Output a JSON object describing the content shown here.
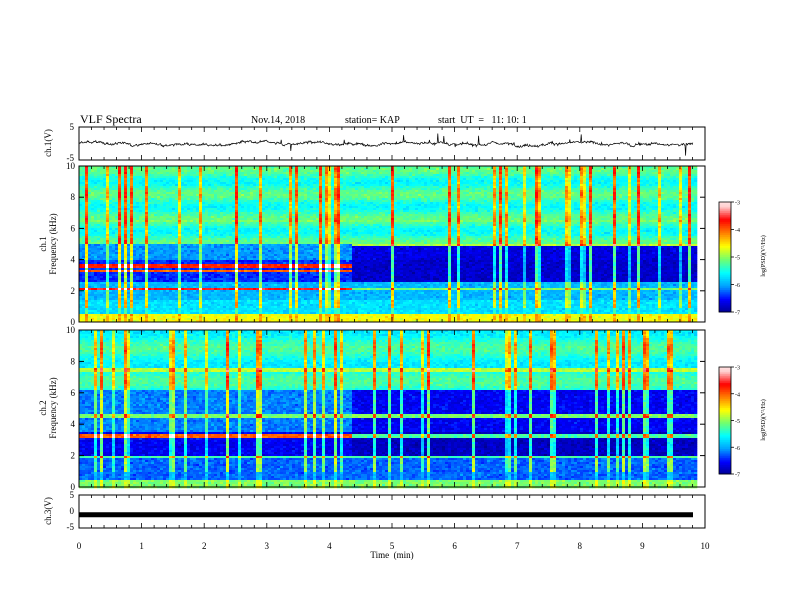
{
  "header": {
    "title": "VLF Spectra",
    "date": "Nov.14, 2018",
    "station": "station= KAP",
    "start": "start  UT  =   11: 10: 1"
  },
  "chart_data": [
    {
      "type": "line",
      "panel": "ch1-waveform",
      "ylabel": "ch.1(V)",
      "ylim": [
        -5,
        5
      ],
      "yticks": [
        5,
        -5
      ],
      "xlim": [
        0,
        10
      ],
      "series": [
        {
          "color": "#000000",
          "description_level": "noisy trace fluctuating roughly between -2.5 and 2.5 V"
        }
      ]
    },
    {
      "type": "heatmap",
      "panel": "ch1-spectrogram",
      "ylabel_line1": "ch.1",
      "ylabel_line2": "Frequency (kHz)",
      "ylim": [
        0,
        10
      ],
      "yticks": [
        0,
        2,
        4,
        6,
        8,
        10
      ],
      "xlim": [
        0,
        9.85
      ],
      "step_time_min": 4.35,
      "colorbar": {
        "label": "log(PSD)(V²/Hz)",
        "ticks": [
          -3,
          -4,
          -5,
          -6,
          -7
        ],
        "range": [
          -7,
          -3
        ]
      }
    },
    {
      "type": "heatmap",
      "panel": "ch2-spectrogram",
      "ylabel_line1": "ch.2",
      "ylabel_line2": "Frequency (kHz)",
      "ylim": [
        0,
        10
      ],
      "yticks": [
        0,
        2,
        4,
        6,
        8,
        10
      ],
      "xlim": [
        0,
        9.85
      ],
      "step_time_min": 4.35,
      "colorbar": {
        "label": "log(PSD)(V²/Hz)",
        "ticks": [
          -3,
          -4,
          -5,
          -6,
          -7
        ],
        "range": [
          -7,
          -3
        ]
      }
    },
    {
      "type": "line",
      "panel": "ch3-waveform",
      "ylabel": "ch.3(V)",
      "ylim": [
        -5,
        5
      ],
      "yticks": [
        5,
        0,
        -5
      ],
      "xlim": [
        0,
        10
      ],
      "series": [
        {
          "color": "#000000",
          "constant_value": -1
        }
      ]
    }
  ],
  "xaxis": {
    "label": "Time  (min)",
    "ticks": [
      "0",
      "1",
      "2",
      "3",
      "4",
      "5",
      "6",
      "7",
      "8",
      "9",
      "10"
    ]
  },
  "colors": {
    "colormap": [
      "#00008f",
      "#0000ff",
      "#00a0ff",
      "#00ffff",
      "#70ff70",
      "#ffff00",
      "#ff8000",
      "#ff0000",
      "#ffd0d0",
      "#ffffff"
    ]
  }
}
